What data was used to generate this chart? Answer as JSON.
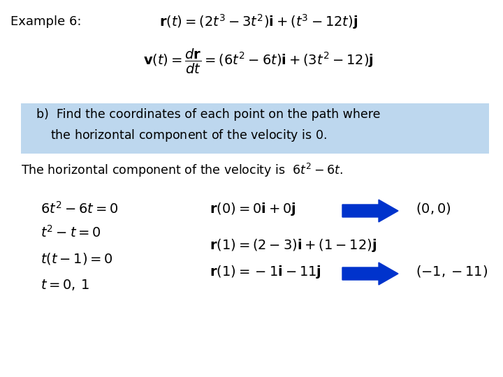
{
  "background_color": "#ffffff",
  "highlight_box_color": "#bdd7ee",
  "example_label": "Example 6:",
  "arrow_color": "#0033cc",
  "fig_width": 7.2,
  "fig_height": 5.4,
  "dpi": 100
}
